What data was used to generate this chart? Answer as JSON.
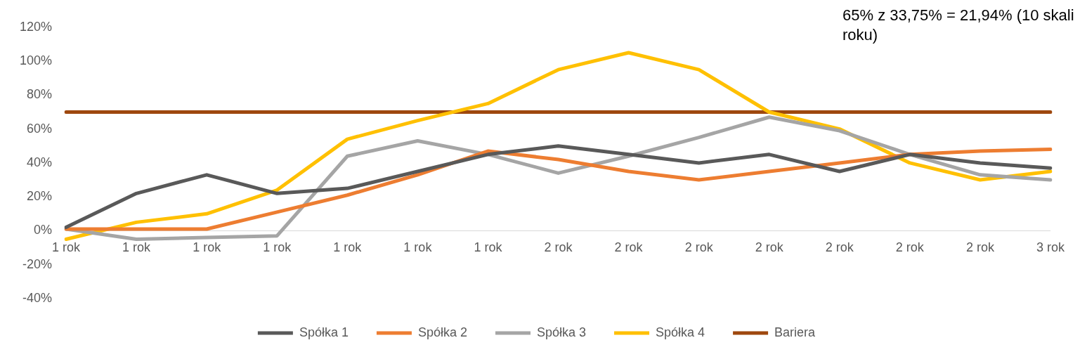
{
  "chart_data": {
    "type": "line",
    "categories": [
      "1 rok",
      "1 rok",
      "1 rok",
      "1 rok",
      "1 rok",
      "1 rok",
      "1 rok",
      "2 rok",
      "2 rok",
      "2 rok",
      "2 rok",
      "2 rok",
      "2 rok",
      "2 rok",
      "3 rok"
    ],
    "series": [
      {
        "name": "Spółka 1",
        "color": "#595959",
        "values": [
          2,
          22,
          33,
          22,
          25,
          35,
          45,
          50,
          45,
          40,
          45,
          35,
          45,
          40,
          37
        ]
      },
      {
        "name": "Spółka 2",
        "color": "#ed7d31",
        "values": [
          1,
          1,
          1,
          11,
          21,
          33,
          47,
          42,
          35,
          30,
          35,
          40,
          45,
          47,
          48
        ]
      },
      {
        "name": "Spółka 3",
        "color": "#a5a5a5",
        "values": [
          1,
          -5,
          -4,
          -3,
          44,
          53,
          45,
          34,
          44,
          55,
          67,
          59,
          45,
          33,
          30
        ]
      },
      {
        "name": "Spółka 4",
        "color": "#ffc000",
        "values": [
          -5,
          5,
          10,
          24,
          54,
          65,
          75,
          95,
          105,
          95,
          70,
          60,
          40,
          30,
          35
        ]
      },
      {
        "name": "Bariera",
        "color": "#9e480e",
        "values": [
          70,
          70,
          70,
          70,
          70,
          70,
          70,
          70,
          70,
          70,
          70,
          70,
          70,
          70,
          70
        ]
      }
    ],
    "ylim": [
      -40,
      120
    ],
    "yticks": [
      {
        "value": -40,
        "label": "-40%"
      },
      {
        "value": -20,
        "label": "-20%"
      },
      {
        "value": 0,
        "label": "0%"
      },
      {
        "value": 20,
        "label": "20%"
      },
      {
        "value": 40,
        "label": "40%"
      },
      {
        "value": 60,
        "label": "60%"
      },
      {
        "value": 80,
        "label": "80%"
      },
      {
        "value": 100,
        "label": "100%"
      },
      {
        "value": 120,
        "label": "120%"
      }
    ],
    "grid": false,
    "legend": "bottom",
    "marker": "none",
    "line_style": "solid",
    "annotations": [
      "65% z 33,75% = 21,94% (10 skali roku)"
    ]
  }
}
